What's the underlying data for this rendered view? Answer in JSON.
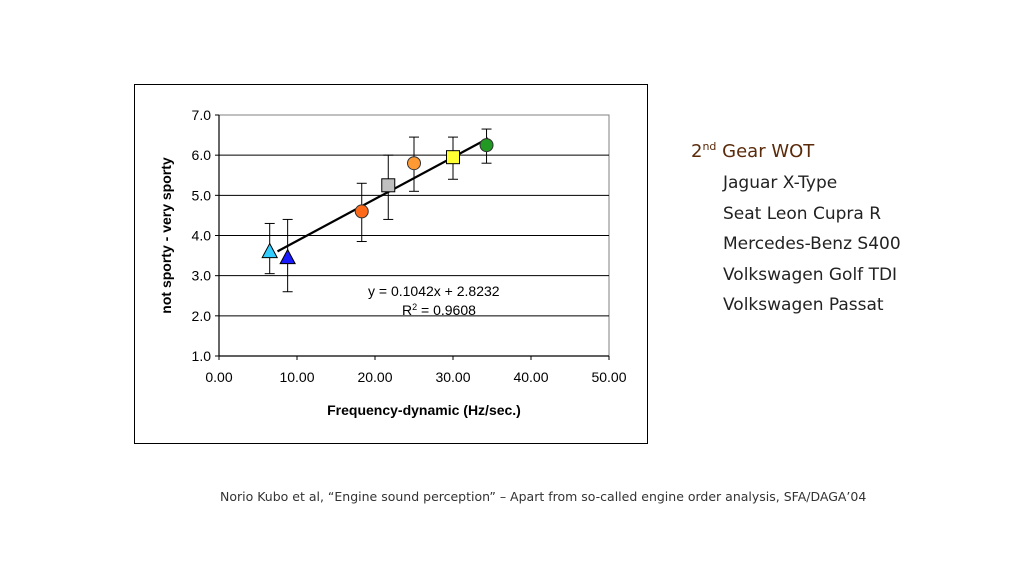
{
  "legend": {
    "title_main": "2",
    "title_sup": "nd",
    "title_rest": " Gear WOT",
    "items": [
      "Jaguar X-Type",
      "Seat Leon Cupra R",
      "Mercedes-Benz S400",
      "Volkswagen Golf TDI",
      "Volkswagen Passat"
    ]
  },
  "citation": "Norio Kubo et al, “Engine sound perception” – Apart from so-called engine order analysis, SFA/DAGA’04",
  "chart_data": {
    "type": "scatter",
    "xlabel": "Frequency-dynamic (Hz/sec.)",
    "ylabel": "not sporty - very sporty",
    "xlim": [
      0,
      50
    ],
    "ylim": [
      1,
      7
    ],
    "x_ticks": [
      "0.00",
      "10.00",
      "20.00",
      "30.00",
      "40.00",
      "50.00"
    ],
    "y_ticks": [
      "1.0",
      "2.0",
      "3.0",
      "4.0",
      "5.0",
      "6.0",
      "7.0"
    ],
    "grid": "horizontal",
    "equation": "y = 0.1042x + 2.8232",
    "r_squared_label": "R",
    "r_squared_sup": "2",
    "r_squared_value": " = 0.9608",
    "trendline": {
      "slope": 0.1042,
      "intercept": 2.8232,
      "x_range": [
        7.5,
        34.5
      ]
    },
    "points": [
      {
        "x": 6.5,
        "y": 3.6,
        "err_low": 3.05,
        "err_high": 4.3,
        "shape": "triangle",
        "color": "#33ccff"
      },
      {
        "x": 8.8,
        "y": 3.45,
        "err_low": 2.6,
        "err_high": 4.4,
        "shape": "triangle",
        "color": "#1a1aff"
      },
      {
        "x": 18.3,
        "y": 4.6,
        "err_low": 3.85,
        "err_high": 5.3,
        "shape": "circle",
        "color": "#ff6a1a"
      },
      {
        "x": 21.7,
        "y": 5.25,
        "err_low": 4.4,
        "err_high": 6.0,
        "shape": "square",
        "color": "#c0c0c0"
      },
      {
        "x": 25.0,
        "y": 5.8,
        "err_low": 5.1,
        "err_high": 6.45,
        "shape": "circle",
        "color": "#ff9933"
      },
      {
        "x": 30.0,
        "y": 5.95,
        "err_low": 5.4,
        "err_high": 6.45,
        "shape": "square",
        "color": "#ffff33"
      },
      {
        "x": 34.3,
        "y": 6.25,
        "err_low": 5.8,
        "err_high": 6.65,
        "shape": "circle",
        "color": "#229922"
      }
    ]
  }
}
